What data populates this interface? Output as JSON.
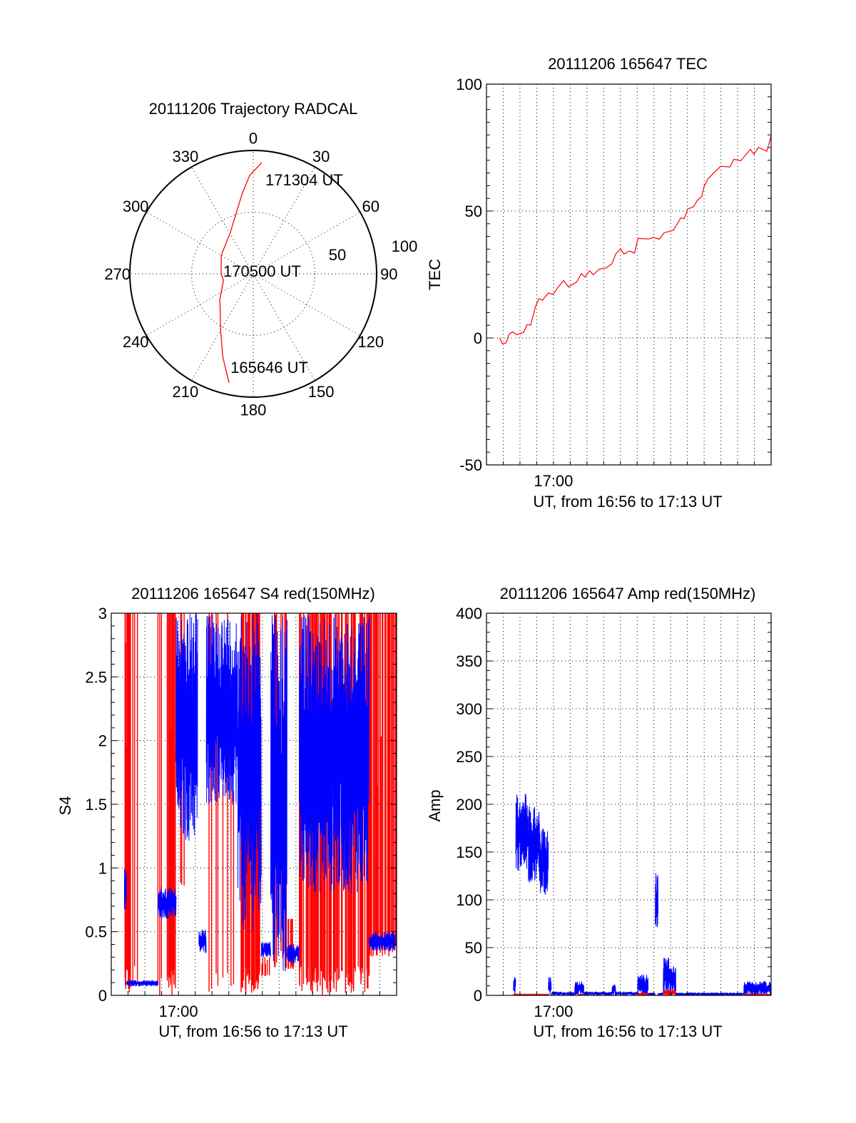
{
  "colors": {
    "red": "#ff0000",
    "blue": "#0000ff",
    "axis": "#000000"
  },
  "chart_data": [
    {
      "type": "polar",
      "title": "20111206 Trajectory RADCAL",
      "azimuth_labels": [
        "0",
        "30",
        "60",
        "90",
        "120",
        "150",
        "180",
        "210",
        "240",
        "270",
        "300",
        "330"
      ],
      "radial_labels": [
        "50",
        "100"
      ],
      "rlim": [
        0,
        100
      ],
      "grid": true,
      "series": [
        {
          "name": "trajectory",
          "color": "#ff0000",
          "points": [
            [
              192.5,
              90.5
            ],
            [
              200,
              72
            ],
            [
              210.5,
              52.3
            ],
            [
              222,
              40
            ],
            [
              232.5,
              34.2
            ],
            [
              257.4,
              24.7
            ],
            [
              270,
              26
            ],
            [
              300,
              30
            ],
            [
              330.6,
              38
            ],
            [
              345,
              52
            ],
            [
              352.5,
              66.4
            ],
            [
              358,
              80
            ],
            [
              4.4,
              90.4
            ]
          ]
        }
      ],
      "annotations": [
        {
          "text": "165646 UT",
          "az": 192.5,
          "r": 90.5
        },
        {
          "text": "170500 UT",
          "az": 270,
          "r": 26
        },
        {
          "text": "171304 UT",
          "az": 4.4,
          "r": 90.4
        }
      ]
    },
    {
      "type": "line",
      "title": "20111206 165647 TEC",
      "xlabel": "UT, from 16:56 to 17:13 UT",
      "ylabel": "TEC",
      "x_units": "minutes after 16:56 UT",
      "xlim": [
        0,
        17
      ],
      "ylim": [
        -50,
        100
      ],
      "yticks": [
        -50,
        0,
        50,
        100
      ],
      "yticks_labels": [
        "-50",
        "0",
        "50",
        "100"
      ],
      "y_minor_step": 5,
      "y_grid": [
        0,
        50
      ],
      "x_grid_step": 1,
      "xticks": [
        {
          "value": 4,
          "label": "17:00"
        }
      ],
      "series": [
        {
          "name": "TEC",
          "color": "#ff0000",
          "x": [
            0.78,
            0.94,
            1.16,
            1.37,
            1.58,
            1.79,
            2.21,
            2.43,
            2.64,
            2.92,
            3.13,
            3.34,
            3.7,
            3.98,
            4.26,
            4.61,
            4.9,
            5.39,
            5.67,
            5.88,
            6.16,
            6.38,
            6.73,
            7.15,
            7.5,
            7.72,
            8.0,
            8.21,
            8.56,
            8.84,
            9.05,
            9.69,
            9.97,
            10.32,
            10.61,
            11.17,
            11.38,
            11.6,
            11.81,
            12.02,
            12.37,
            12.58,
            12.86,
            13.0,
            13.21,
            13.5,
            13.99,
            14.55,
            14.77,
            15.19,
            15.76,
            15.97,
            16.25,
            16.74,
            17.0
          ],
          "y": [
            0,
            -2.2,
            -2,
            1.7,
            2.4,
            1.3,
            2.2,
            5.3,
            5,
            12.2,
            15.5,
            14.9,
            17.7,
            17.1,
            19.9,
            22.6,
            20.1,
            22.1,
            25.4,
            24,
            26.5,
            24.9,
            27.1,
            27.6,
            29.3,
            33.1,
            35.1,
            33.1,
            34.3,
            33.4,
            39.2,
            39,
            39.6,
            38.9,
            41.4,
            42.5,
            44.8,
            47.3,
            47,
            50.8,
            51.7,
            54.1,
            55.8,
            59.7,
            62.4,
            64.6,
            67.6,
            67.4,
            70.4,
            69.8,
            74.3,
            72.4,
            75.1,
            73.5,
            79.6
          ]
        }
      ]
    },
    {
      "type": "line",
      "title": "20111206 165647 S4 red(150MHz)",
      "xlabel": "UT, from 16:56 to 17:13 UT",
      "ylabel": "S4",
      "x_units": "minutes after 16:56 UT",
      "xlim": [
        0,
        17
      ],
      "ylim": [
        0,
        3
      ],
      "yticks": [
        0,
        0.5,
        1,
        1.5,
        2,
        2.5,
        3
      ],
      "yticks_labels": [
        "0",
        "0.5",
        "1",
        "1.5",
        "2",
        "2.5",
        "3"
      ],
      "y_minor_step": 0.1,
      "y_grid": [
        0.5,
        1,
        1.5,
        2,
        2.5
      ],
      "x_grid_step": 1,
      "xticks": [
        {
          "value": 4,
          "label": "17:00"
        }
      ],
      "series": [
        {
          "name": "S4 red spikes",
          "color": "#ff0000",
          "style": "spikes",
          "segments_t0_t1_density_low_high": [
            [
              0.78,
              1.13,
              45,
              0,
              3
            ],
            [
              1.13,
              1.75,
              6,
              0,
              3
            ],
            [
              2.7,
              2.98,
              8,
              0,
              3
            ],
            [
              2.98,
              3.42,
              6,
              0,
              3
            ],
            [
              3.42,
              3.88,
              50,
              0,
              3
            ],
            [
              3.88,
              4.4,
              5,
              0.8,
              3
            ],
            [
              5.74,
              6.4,
              6,
              0,
              3
            ],
            [
              6.4,
              7.4,
              4,
              0,
              3
            ],
            [
              7.73,
              8.85,
              40,
              0,
              3
            ],
            [
              8.94,
              9.5,
              10,
              0.15,
              0.3
            ],
            [
              9.6,
              10.5,
              10,
              0.2,
              3
            ],
            [
              10.5,
              11.2,
              12,
              0.2,
              0.6
            ],
            [
              11.2,
              13.5,
              25,
              0,
              3
            ],
            [
              13.5,
              15.4,
              18,
              0,
              3
            ],
            [
              15.4,
              17.0,
              25,
              0.3,
              3
            ]
          ]
        },
        {
          "name": "S4 blue",
          "color": "#0000ff",
          "style": "noisy-envelope",
          "segments_t0_t1_low_high": [
            [
              0.78,
              0.91,
              0.65,
              1.0
            ],
            [
              0.91,
              2.79,
              0.07,
              0.12
            ],
            [
              2.79,
              3.86,
              0.6,
              0.85
            ],
            [
              3.86,
              5.15,
              1.2,
              3.0
            ],
            [
              5.22,
              5.66,
              0.33,
              0.52
            ],
            [
              5.66,
              7.54,
              1.5,
              3.0
            ],
            [
              7.54,
              8.94,
              0.5,
              3.0
            ],
            [
              8.94,
              9.5,
              0.3,
              0.42
            ],
            [
              9.5,
              10.48,
              0.12,
              3.0
            ],
            [
              10.48,
              11.2,
              0.25,
              0.4
            ],
            [
              11.2,
              15.37,
              0.8,
              3.0
            ],
            [
              15.37,
              16.93,
              0.35,
              0.5
            ]
          ]
        }
      ]
    },
    {
      "type": "line",
      "title": "20111206 165647 Amp red(150MHz)",
      "xlabel": "UT, from 16:56 to 17:13 UT",
      "ylabel": "Amp",
      "x_units": "minutes after 16:56 UT",
      "xlim": [
        0,
        17
      ],
      "ylim": [
        0,
        400
      ],
      "yticks": [
        0,
        50,
        100,
        150,
        200,
        250,
        300,
        350,
        400
      ],
      "yticks_labels": [
        "0",
        "50",
        "100",
        "150",
        "200",
        "250",
        "300",
        "350",
        "400"
      ],
      "y_minor_step": 10,
      "y_grid": [
        50,
        100,
        150,
        200,
        250,
        300,
        350
      ],
      "x_grid_step": 1,
      "xticks": [
        {
          "value": 4,
          "label": "17:00"
        }
      ],
      "series": [
        {
          "name": "Amp blue",
          "color": "#0000ff",
          "style": "noisy-envelope",
          "segments_t0_t1_low_high": [
            [
              1.61,
              1.75,
              0,
              25
            ],
            [
              1.75,
              2.5,
              130,
              212
            ],
            [
              2.5,
              3.2,
              118,
              200
            ],
            [
              3.2,
              3.7,
              105,
              175
            ],
            [
              3.7,
              3.88,
              0,
              20
            ],
            [
              3.88,
              5.27,
              0,
              4
            ],
            [
              5.27,
              5.81,
              0,
              15
            ],
            [
              5.81,
              7.5,
              0,
              4
            ],
            [
              7.5,
              7.72,
              0,
              12
            ],
            [
              7.72,
              9.03,
              0,
              4
            ],
            [
              9.03,
              9.66,
              0,
              22
            ],
            [
              9.66,
              10.08,
              0,
              3
            ],
            [
              10.08,
              10.25,
              60,
              135
            ],
            [
              10.25,
              10.56,
              0,
              3
            ],
            [
              10.56,
              10.9,
              0,
              40
            ],
            [
              10.9,
              11.31,
              0,
              35
            ],
            [
              11.31,
              15.37,
              0,
              3
            ],
            [
              15.37,
              17.0,
              0,
              15
            ]
          ]
        },
        {
          "name": "Amp red",
          "color": "#ff0000",
          "style": "noisy-envelope",
          "segments_t0_t1_low_high": [
            [
              1.61,
              3.7,
              0,
              1
            ],
            [
              5.5,
              5.81,
              0,
              1
            ],
            [
              9.03,
              9.66,
              0,
              3
            ],
            [
              10.56,
              11.31,
              0,
              6
            ],
            [
              15.37,
              17.0,
              0,
              1
            ]
          ]
        }
      ]
    }
  ]
}
